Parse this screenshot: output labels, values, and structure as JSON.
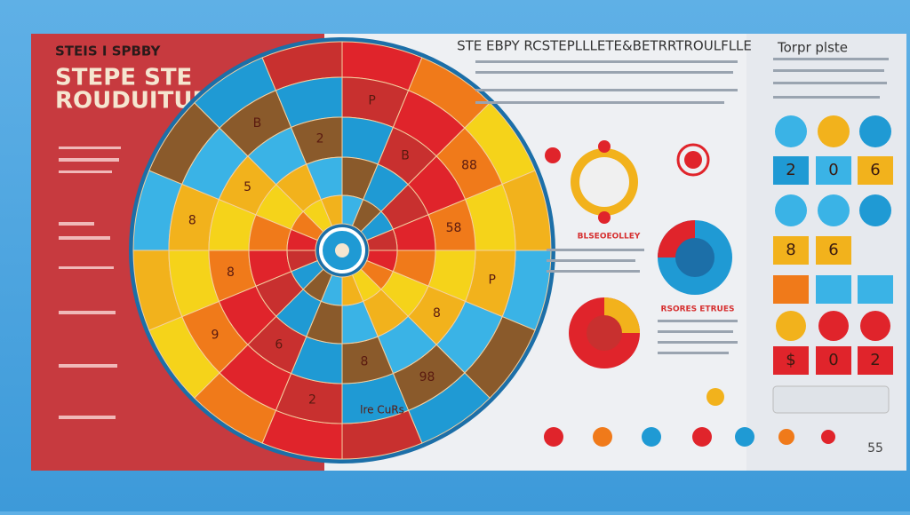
{
  "header": {
    "kicker": "STEIS I SPBBY",
    "title_line1": "STEPE STE",
    "title_line2": "ROUDUITUE"
  },
  "center": {
    "title": "STE EBPY RCSTEPLLLETE&BETRRTROULFLLE",
    "caption1": "BLSEOEOLLEY",
    "caption2": "RSORES ETRUES"
  },
  "wheel": {
    "labels": [
      "P",
      "B",
      "88",
      "58",
      "P",
      "8",
      "98",
      "8",
      "2",
      "6",
      "9",
      "8",
      "8",
      "5",
      "B",
      "2"
    ],
    "center_text": "lre CuRs"
  },
  "side": {
    "title": "Torpr plste",
    "tiles": [
      "2",
      "0",
      "6",
      "8",
      "6",
      "$",
      "0",
      "2"
    ],
    "badge": "55"
  }
}
